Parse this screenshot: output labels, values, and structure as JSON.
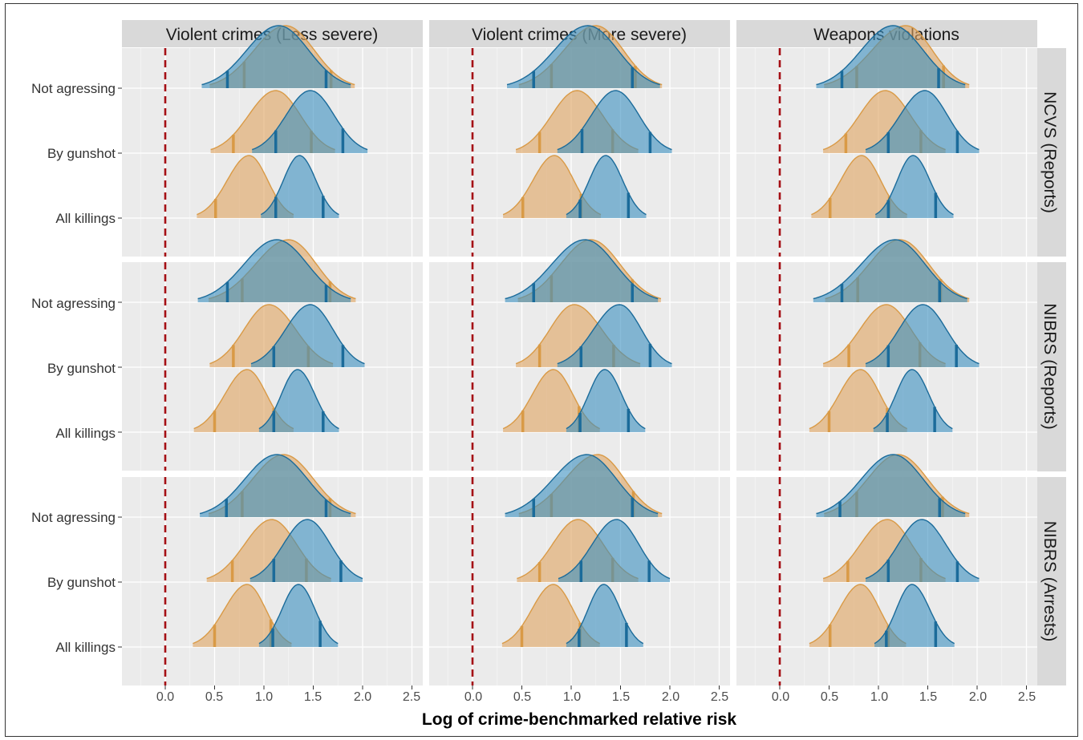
{
  "chart_data": {
    "type": "area",
    "chart_kind": "ridgeline density plots (faceted)",
    "xlabel": "Log of crime-benchmarked relative risk",
    "xlim": [
      -0.45,
      2.65
    ],
    "x_ticks": [
      "0.0",
      "0.5",
      "1.0",
      "1.5",
      "2.0",
      "2.5"
    ],
    "x_tick_values": [
      0,
      0.5,
      1.0,
      1.5,
      2.0,
      2.5
    ],
    "reference_line": {
      "x": 0,
      "style": "dashed",
      "color": "#a50f15"
    },
    "column_facets": [
      "Violent crimes (Less severe)",
      "Violent crimes (More severe)",
      "Weapons violations"
    ],
    "row_facets": [
      "NCVS (Reports)",
      "NIBRS (Reports)",
      "NIBRS (Arrests)"
    ],
    "y_categories": [
      "Not agressing",
      "By gunshot",
      "All killings"
    ],
    "series_colors": {
      "orange": "#e0a35f",
      "blue": "#3a8fbf",
      "blue_outline": "#1b6b9a",
      "orange_outline": "#d99a46"
    },
    "grid": true,
    "background": "#ebebeb",
    "panels": [
      {
        "col": 0,
        "row": 0,
        "densities": [
          {
            "category": "Not agressing",
            "orange": {
              "mode": 1.22,
              "q05": 0.8,
              "q95": 1.68,
              "min": 0.45,
              "max": 1.92
            },
            "blue": {
              "mode": 1.15,
              "q05": 0.63,
              "q95": 1.63,
              "min": 0.37,
              "max": 1.88
            }
          },
          {
            "category": "By gunshot",
            "orange": {
              "mode": 1.12,
              "q05": 0.69,
              "q95": 1.48,
              "min": 0.46,
              "max": 1.72
            },
            "blue": {
              "mode": 1.47,
              "q05": 1.12,
              "q95": 1.8,
              "min": 0.88,
              "max": 2.05
            }
          },
          {
            "category": "All killings",
            "orange": {
              "mode": 0.85,
              "q05": 0.51,
              "q95": 1.12,
              "min": 0.32,
              "max": 1.3
            },
            "blue": {
              "mode": 1.36,
              "q05": 1.12,
              "q95": 1.6,
              "min": 0.97,
              "max": 1.76
            }
          }
        ]
      },
      {
        "col": 1,
        "row": 0,
        "densities": [
          {
            "category": "Not agressing",
            "orange": {
              "mode": 1.25,
              "q05": 0.8,
              "q95": 1.65,
              "min": 0.47,
              "max": 1.92
            },
            "blue": {
              "mode": 1.17,
              "q05": 0.62,
              "q95": 1.62,
              "min": 0.35,
              "max": 1.9
            }
          },
          {
            "category": "By gunshot",
            "orange": {
              "mode": 1.06,
              "q05": 0.68,
              "q95": 1.42,
              "min": 0.44,
              "max": 1.68
            },
            "blue": {
              "mode": 1.45,
              "q05": 1.11,
              "q95": 1.8,
              "min": 0.86,
              "max": 2.02
            }
          },
          {
            "category": "All killings",
            "orange": {
              "mode": 0.83,
              "q05": 0.51,
              "q95": 1.1,
              "min": 0.31,
              "max": 1.3
            },
            "blue": {
              "mode": 1.35,
              "q05": 1.09,
              "q95": 1.58,
              "min": 0.95,
              "max": 1.76
            }
          }
        ]
      },
      {
        "col": 2,
        "row": 0,
        "densities": [
          {
            "category": "Not agressing",
            "orange": {
              "mode": 1.28,
              "q05": 0.78,
              "q95": 1.66,
              "min": 0.45,
              "max": 1.92
            },
            "blue": {
              "mode": 1.15,
              "q05": 0.63,
              "q95": 1.61,
              "min": 0.37,
              "max": 1.88
            }
          },
          {
            "category": "By gunshot",
            "orange": {
              "mode": 1.07,
              "q05": 0.67,
              "q95": 1.43,
              "min": 0.44,
              "max": 1.68
            },
            "blue": {
              "mode": 1.47,
              "q05": 1.1,
              "q95": 1.8,
              "min": 0.87,
              "max": 2.02
            }
          },
          {
            "category": "All killings",
            "orange": {
              "mode": 0.83,
              "q05": 0.51,
              "q95": 1.11,
              "min": 0.32,
              "max": 1.29
            },
            "blue": {
              "mode": 1.35,
              "q05": 1.1,
              "q95": 1.58,
              "min": 0.97,
              "max": 1.76
            }
          }
        ]
      },
      {
        "col": 0,
        "row": 1,
        "densities": [
          {
            "category": "Not agressing",
            "orange": {
              "mode": 1.25,
              "q05": 0.78,
              "q95": 1.67,
              "min": 0.44,
              "max": 1.93
            },
            "blue": {
              "mode": 1.13,
              "q05": 0.63,
              "q95": 1.63,
              "min": 0.33,
              "max": 1.88
            }
          },
          {
            "category": "By gunshot",
            "orange": {
              "mode": 1.05,
              "q05": 0.69,
              "q95": 1.45,
              "min": 0.45,
              "max": 1.7
            },
            "blue": {
              "mode": 1.47,
              "q05": 1.1,
              "q95": 1.8,
              "min": 0.87,
              "max": 2.02
            }
          },
          {
            "category": "All killings",
            "orange": {
              "mode": 0.83,
              "q05": 0.5,
              "q95": 1.1,
              "min": 0.29,
              "max": 1.3
            },
            "blue": {
              "mode": 1.34,
              "q05": 1.1,
              "q95": 1.6,
              "min": 0.95,
              "max": 1.76
            }
          }
        ]
      },
      {
        "col": 1,
        "row": 1,
        "densities": [
          {
            "category": "Not agressing",
            "orange": {
              "mode": 1.2,
              "q05": 0.8,
              "q95": 1.62,
              "min": 0.46,
              "max": 1.91
            },
            "blue": {
              "mode": 1.14,
              "q05": 0.62,
              "q95": 1.62,
              "min": 0.33,
              "max": 1.88
            }
          },
          {
            "category": "By gunshot",
            "orange": {
              "mode": 1.03,
              "q05": 0.68,
              "q95": 1.43,
              "min": 0.44,
              "max": 1.7
            },
            "blue": {
              "mode": 1.49,
              "q05": 1.1,
              "q95": 1.8,
              "min": 0.86,
              "max": 2.02
            }
          },
          {
            "category": "All killings",
            "orange": {
              "mode": 0.82,
              "q05": 0.51,
              "q95": 1.08,
              "min": 0.31,
              "max": 1.29
            },
            "blue": {
              "mode": 1.34,
              "q05": 1.09,
              "q95": 1.58,
              "min": 0.95,
              "max": 1.75
            }
          }
        ]
      },
      {
        "col": 2,
        "row": 1,
        "densities": [
          {
            "category": "Not agressing",
            "orange": {
              "mode": 1.22,
              "q05": 0.79,
              "q95": 1.63,
              "min": 0.46,
              "max": 1.92
            },
            "blue": {
              "mode": 1.17,
              "q05": 0.63,
              "q95": 1.62,
              "min": 0.34,
              "max": 1.9
            }
          },
          {
            "category": "By gunshot",
            "orange": {
              "mode": 1.08,
              "q05": 0.7,
              "q95": 1.42,
              "min": 0.44,
              "max": 1.68
            },
            "blue": {
              "mode": 1.45,
              "q05": 1.1,
              "q95": 1.79,
              "min": 0.87,
              "max": 2.02
            }
          },
          {
            "category": "All killings",
            "orange": {
              "mode": 0.82,
              "q05": 0.5,
              "q95": 1.09,
              "min": 0.3,
              "max": 1.29
            },
            "blue": {
              "mode": 1.34,
              "q05": 1.09,
              "q95": 1.57,
              "min": 0.95,
              "max": 1.75
            }
          }
        ]
      },
      {
        "col": 0,
        "row": 2,
        "densities": [
          {
            "category": "Not agressing",
            "orange": {
              "mode": 1.2,
              "q05": 0.78,
              "q95": 1.67,
              "min": 0.44,
              "max": 1.93
            },
            "blue": {
              "mode": 1.13,
              "q05": 0.62,
              "q95": 1.63,
              "min": 0.35,
              "max": 1.88
            }
          },
          {
            "category": "By gunshot",
            "orange": {
              "mode": 1.08,
              "q05": 0.68,
              "q95": 1.43,
              "min": 0.42,
              "max": 1.68
            },
            "blue": {
              "mode": 1.44,
              "q05": 1.1,
              "q95": 1.78,
              "min": 0.86,
              "max": 2.0
            }
          },
          {
            "category": "All killings",
            "orange": {
              "mode": 0.83,
              "q05": 0.5,
              "q95": 1.07,
              "min": 0.28,
              "max": 1.28
            },
            "blue": {
              "mode": 1.35,
              "q05": 1.09,
              "q95": 1.57,
              "min": 0.95,
              "max": 1.75
            }
          }
        ]
      },
      {
        "col": 1,
        "row": 2,
        "densities": [
          {
            "category": "Not agressing",
            "orange": {
              "mode": 1.27,
              "q05": 0.8,
              "q95": 1.63,
              "min": 0.47,
              "max": 1.92
            },
            "blue": {
              "mode": 1.16,
              "q05": 0.62,
              "q95": 1.62,
              "min": 0.33,
              "max": 1.88
            }
          },
          {
            "category": "By gunshot",
            "orange": {
              "mode": 1.07,
              "q05": 0.68,
              "q95": 1.42,
              "min": 0.45,
              "max": 1.68
            },
            "blue": {
              "mode": 1.46,
              "q05": 1.1,
              "q95": 1.79,
              "min": 0.87,
              "max": 2.0
            }
          },
          {
            "category": "All killings",
            "orange": {
              "mode": 0.82,
              "q05": 0.5,
              "q95": 1.09,
              "min": 0.3,
              "max": 1.29
            },
            "blue": {
              "mode": 1.33,
              "q05": 1.08,
              "q95": 1.56,
              "min": 0.95,
              "max": 1.73
            }
          }
        ]
      },
      {
        "col": 2,
        "row": 2,
        "densities": [
          {
            "category": "Not agressing",
            "orange": {
              "mode": 1.2,
              "q05": 0.78,
              "q95": 1.65,
              "min": 0.45,
              "max": 1.92
            },
            "blue": {
              "mode": 1.15,
              "q05": 0.61,
              "q95": 1.62,
              "min": 0.37,
              "max": 1.88
            }
          },
          {
            "category": "By gunshot",
            "orange": {
              "mode": 1.09,
              "q05": 0.69,
              "q95": 1.43,
              "min": 0.44,
              "max": 1.68
            },
            "blue": {
              "mode": 1.44,
              "q05": 1.1,
              "q95": 1.8,
              "min": 0.87,
              "max": 2.02
            }
          },
          {
            "category": "All killings",
            "orange": {
              "mode": 0.82,
              "q05": 0.51,
              "q95": 1.1,
              "min": 0.3,
              "max": 1.28
            },
            "blue": {
              "mode": 1.34,
              "q05": 1.08,
              "q95": 1.58,
              "min": 0.96,
              "max": 1.77
            }
          }
        ]
      }
    ]
  }
}
